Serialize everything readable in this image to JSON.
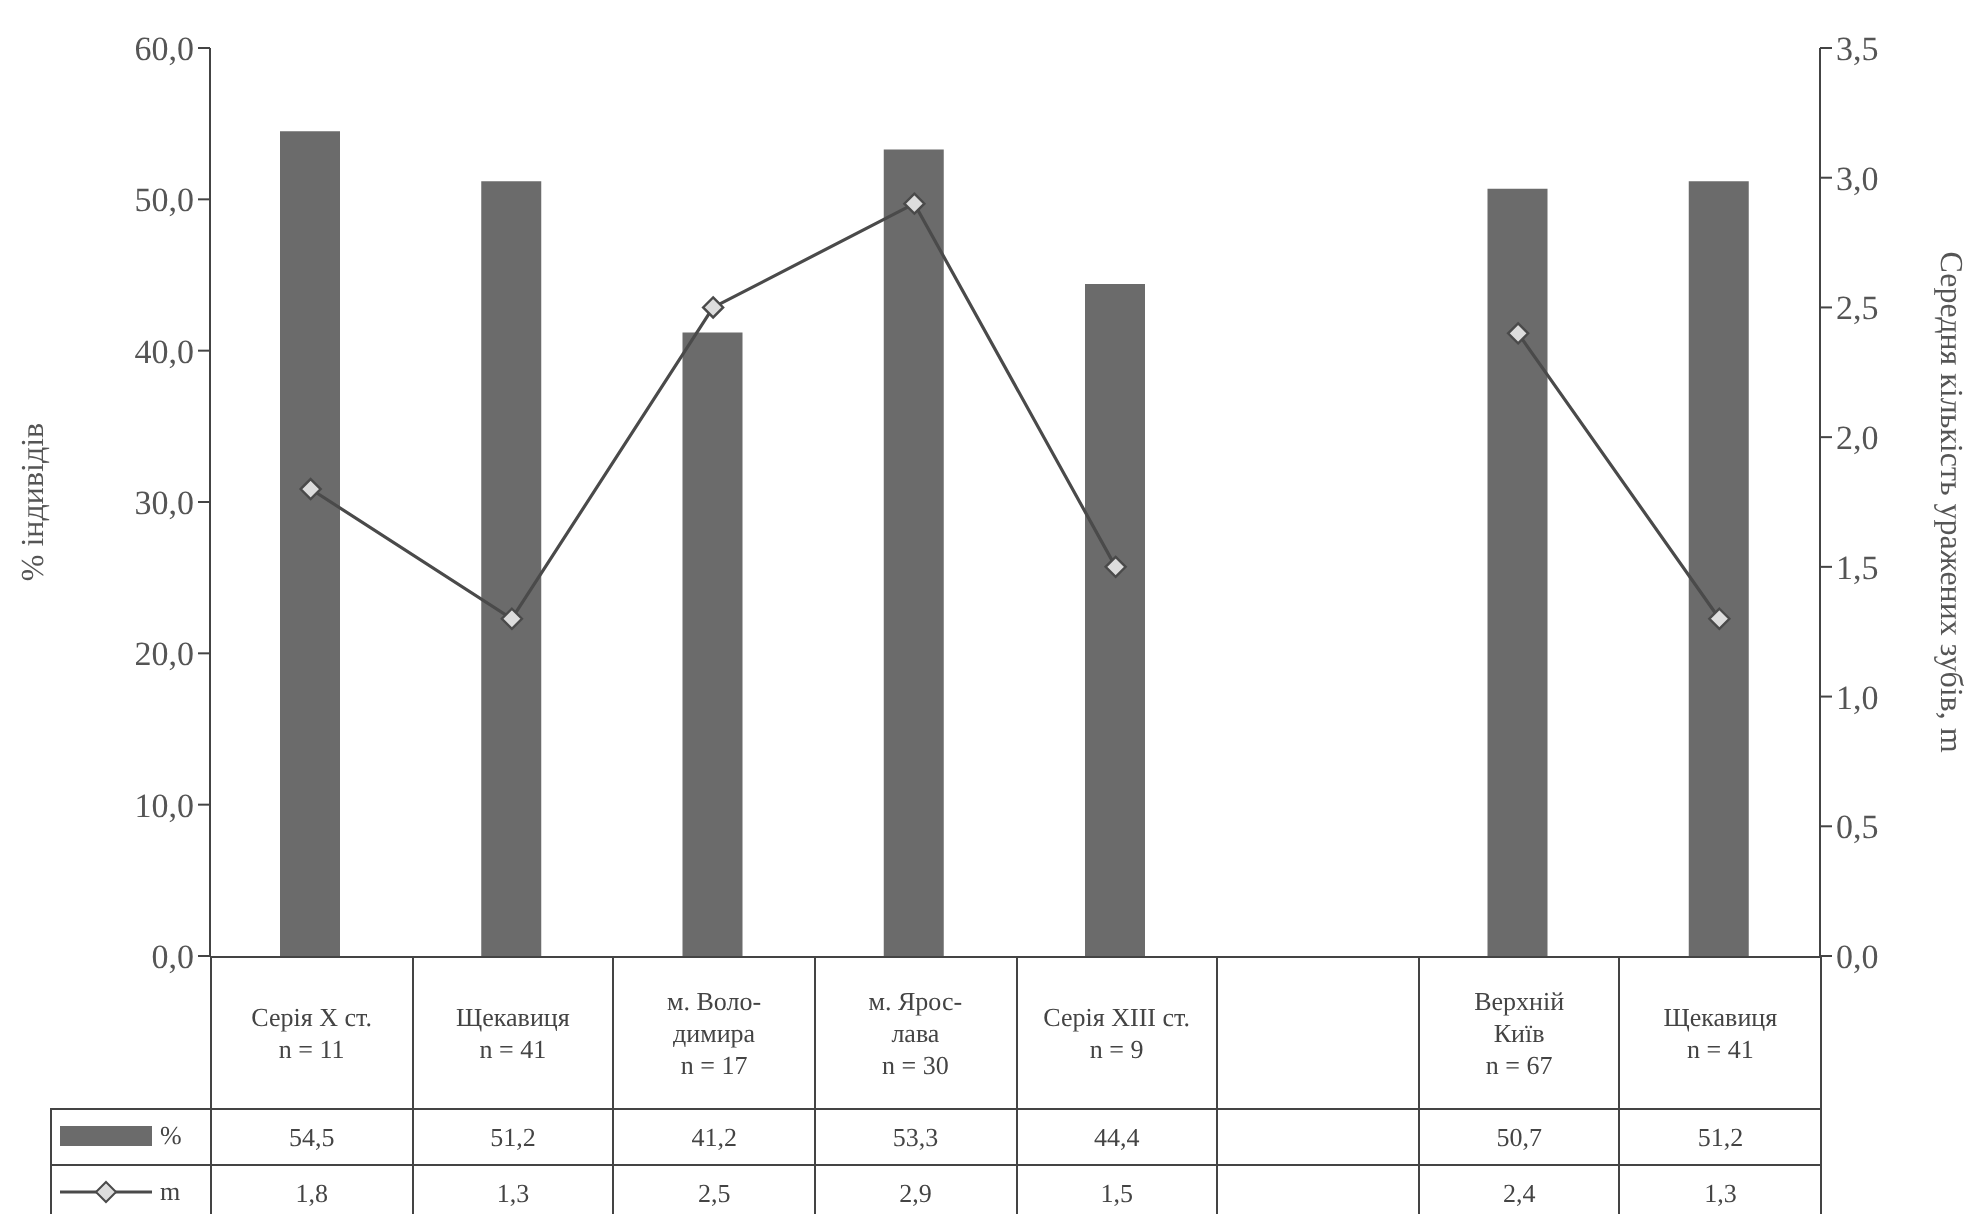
{
  "chart_data": {
    "type": "bar",
    "ylabel": "% індивідів",
    "y2label": "Середня кількість уражених зубів, m",
    "categories": [
      "Серія X ст.\nn = 11",
      "Щекавиця\nn = 41",
      "м. Воло-\nдимира\nn = 17",
      "м. Ярос-\nлава\nn = 30",
      "Серія XIII ст.\nn = 9",
      null,
      "Верхній\nКиїв\nn = 67",
      "Щекавиця\nn = 41"
    ],
    "series": [
      {
        "name": "%",
        "color": "#6b6b6b",
        "values": [
          54.5,
          51.2,
          41.2,
          53.3,
          44.4,
          null,
          50.7,
          51.2
        ],
        "value_labels": [
          "54,5",
          "51,2",
          "41,2",
          "53,3",
          "44,4",
          null,
          "50,7",
          "51,2"
        ]
      },
      {
        "name": "m",
        "type": "line",
        "axis": "y2",
        "color": "#4a4a4a",
        "marker": "diamond",
        "values": [
          1.8,
          1.3,
          2.5,
          2.9,
          1.5,
          null,
          2.4,
          1.3
        ],
        "value_labels": [
          "1,8",
          "1,3",
          "2,5",
          "2,9",
          "1,5",
          null,
          "2,4",
          "1,3"
        ]
      }
    ],
    "ylim": [
      0,
      60
    ],
    "yticks": [
      {
        "value": 0,
        "label": "0,0"
      },
      {
        "value": 10,
        "label": "10,0"
      },
      {
        "value": 20,
        "label": "20,0"
      },
      {
        "value": 30,
        "label": "30,0"
      },
      {
        "value": 40,
        "label": "40,0"
      },
      {
        "value": 50,
        "label": "50,0"
      },
      {
        "value": 60,
        "label": "60,0"
      }
    ],
    "y2lim": [
      0,
      3.5
    ],
    "y2ticks": [
      {
        "value": 0,
        "label": "0,0"
      },
      {
        "value": 0.5,
        "label": "0,5"
      },
      {
        "value": 1,
        "label": "1,0"
      },
      {
        "value": 1.5,
        "label": "1,5"
      },
      {
        "value": 2,
        "label": "2,0"
      },
      {
        "value": 2.5,
        "label": "2,5"
      },
      {
        "value": 3,
        "label": "3,0"
      },
      {
        "value": 3.5,
        "label": "3,5"
      }
    ],
    "legend": "bottom left"
  }
}
